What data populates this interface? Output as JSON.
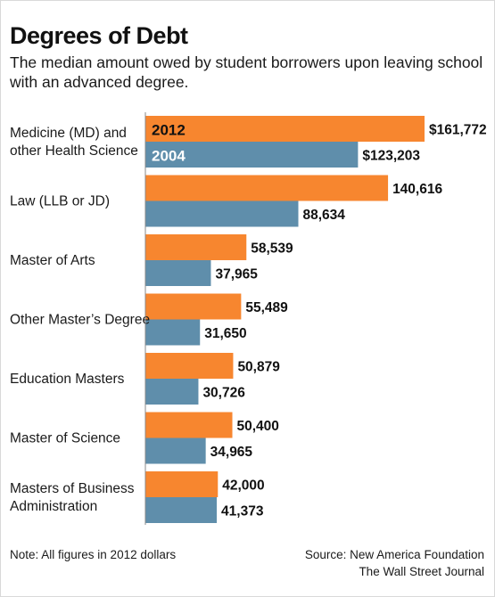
{
  "header": {
    "title": "Degrees of Debt",
    "subtitle": "The median amount owed by student borrowers upon leaving school with an advanced degree."
  },
  "footer": {
    "note": "Note: All figures in 2012 dollars",
    "source": "Source: New America Foundation",
    "publisher": "The Wall Street Journal"
  },
  "colors": {
    "series_2012": "#f7862f",
    "series_2004": "#5f8eab",
    "baseline": "#888888"
  },
  "chart_data": {
    "type": "bar",
    "orientation": "horizontal",
    "title": "Degrees of Debt",
    "categories": [
      [
        "Medicine (MD) and",
        "other Health Science"
      ],
      [
        "Law (LLB or JD)"
      ],
      [
        "Master of Arts"
      ],
      [
        "Other Master’s Degree"
      ],
      [
        "Education Masters"
      ],
      [
        "Master of Science"
      ],
      [
        "Masters of Business",
        "Administration"
      ]
    ],
    "series": [
      {
        "name": "2012",
        "values": [
          161772,
          140616,
          58539,
          55489,
          50879,
          50400,
          42000
        ],
        "value_labels": [
          "$161,772",
          "140,616",
          "58,539",
          "55,489",
          "50,879",
          "50,400",
          "42,000"
        ]
      },
      {
        "name": "2004",
        "values": [
          123203,
          88634,
          37965,
          31650,
          30726,
          34965,
          41373
        ],
        "value_labels": [
          "$123,203",
          "88,634",
          "37,965",
          "31,650",
          "30,726",
          "34,965",
          "41,373"
        ]
      }
    ],
    "xlim": [
      0,
      161772
    ],
    "grid": false,
    "legend": "inside first bars"
  }
}
